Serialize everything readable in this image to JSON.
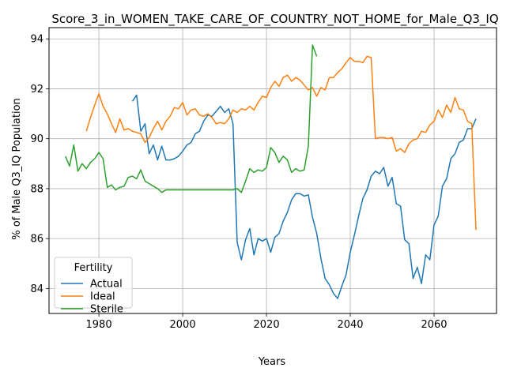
{
  "chart_data": {
    "type": "line",
    "title": "Score_3_in_WOMEN_TAKE_CARE_OF_COUNTRY_NOT_HOME_for_Male_Q3_IQ",
    "xlabel": "Years",
    "ylabel": "% of Male Q3_IQ Population",
    "xlim": [
      1968.1,
      2074.9
    ],
    "ylim": [
      83.0,
      94.45
    ],
    "xticks": [
      1980,
      2000,
      2020,
      2040,
      2060
    ],
    "yticks": [
      84,
      86,
      88,
      90,
      92,
      94
    ],
    "grid": true,
    "legend": {
      "title": "Fertility",
      "position": "lower-left"
    },
    "series": [
      {
        "name": "Actual",
        "color": "#1f77b4",
        "x": [
          1988,
          1989,
          1990,
          1991,
          1992,
          1993,
          1994,
          1995,
          1996,
          1997,
          1998,
          1999,
          2000,
          2001,
          2002,
          2003,
          2004,
          2005,
          2006,
          2007,
          2008,
          2009,
          2010,
          2011,
          2012,
          2013,
          2014,
          2015,
          2016,
          2017,
          2018,
          2019,
          2020,
          2021,
          2022,
          2023,
          2024,
          2025,
          2026,
          2027,
          2028,
          2029,
          2030,
          2031,
          2032,
          2033,
          2034,
          2035,
          2036,
          2037,
          2038,
          2039,
          2040,
          2041,
          2042,
          2043,
          2044,
          2045,
          2046,
          2047,
          2048,
          2049,
          2050,
          2051,
          2052,
          2053,
          2054,
          2055,
          2056,
          2057,
          2058,
          2059,
          2060,
          2061,
          2062,
          2063,
          2064,
          2065,
          2066,
          2067,
          2068,
          2069,
          2070
        ],
        "values": [
          91.5,
          91.75,
          90.3,
          90.6,
          89.4,
          89.75,
          89.15,
          89.7,
          89.15,
          89.15,
          89.2,
          89.3,
          89.5,
          89.75,
          89.85,
          90.2,
          90.3,
          90.7,
          90.95,
          90.9,
          91.1,
          91.3,
          91.05,
          91.2,
          90.6,
          85.85,
          85.15,
          85.95,
          86.4,
          85.35,
          86.0,
          85.9,
          86.0,
          85.45,
          86.05,
          86.2,
          86.7,
          87.05,
          87.55,
          87.8,
          87.8,
          87.7,
          87.75,
          86.85,
          86.2,
          85.2,
          84.4,
          84.15,
          83.8,
          83.6,
          84.1,
          84.55,
          85.45,
          86.15,
          86.9,
          87.6,
          87.95,
          88.5,
          88.7,
          88.6,
          88.85,
          88.1,
          88.45,
          87.4,
          87.3,
          85.95,
          85.8,
          84.4,
          84.85,
          84.2,
          85.35,
          85.15,
          86.55,
          86.9,
          88.1,
          88.4,
          89.2,
          89.4,
          89.85,
          89.95,
          90.4,
          90.4,
          90.8
        ]
      },
      {
        "name": "Ideal",
        "color": "#ff7f0e",
        "x": [
          1977,
          1978,
          1979,
          1980,
          1981,
          1982,
          1983,
          1984,
          1985,
          1986,
          1987,
          1988,
          1989,
          1990,
          1991,
          1992,
          1993,
          1994,
          1995,
          1996,
          1997,
          1998,
          1999,
          2000,
          2001,
          2002,
          2003,
          2004,
          2005,
          2006,
          2007,
          2008,
          2009,
          2010,
          2011,
          2012,
          2013,
          2014,
          2015,
          2016,
          2017,
          2018,
          2019,
          2020,
          2021,
          2022,
          2023,
          2024,
          2025,
          2026,
          2027,
          2028,
          2029,
          2030,
          2031,
          2032,
          2033,
          2034,
          2035,
          2036,
          2037,
          2038,
          2039,
          2040,
          2041,
          2042,
          2043,
          2044,
          2045,
          2046,
          2047,
          2048,
          2049,
          2050,
          2051,
          2052,
          2053,
          2054,
          2055,
          2056,
          2057,
          2058,
          2059,
          2060,
          2061,
          2062,
          2063,
          2064,
          2065,
          2066,
          2067,
          2068,
          2069,
          2070
        ],
        "values": [
          90.3,
          90.85,
          91.35,
          91.8,
          91.3,
          91.0,
          90.6,
          90.25,
          90.8,
          90.35,
          90.4,
          90.3,
          90.25,
          90.2,
          89.85,
          90.05,
          90.4,
          90.7,
          90.35,
          90.7,
          90.9,
          91.25,
          91.2,
          91.45,
          90.95,
          91.15,
          91.2,
          90.95,
          90.9,
          91.0,
          90.85,
          90.6,
          90.65,
          90.6,
          90.8,
          91.15,
          91.05,
          91.2,
          91.15,
          91.3,
          91.15,
          91.45,
          91.7,
          91.65,
          92.05,
          92.3,
          92.1,
          92.45,
          92.55,
          92.3,
          92.45,
          92.35,
          92.15,
          91.95,
          92.05,
          91.7,
          92.05,
          91.95,
          92.45,
          92.45,
          92.65,
          92.8,
          93.05,
          93.25,
          93.1,
          93.1,
          93.05,
          93.3,
          93.25,
          90.0,
          90.05,
          90.05,
          90.0,
          90.05,
          89.5,
          89.6,
          89.45,
          89.8,
          89.95,
          90.0,
          90.3,
          90.25,
          90.55,
          90.7,
          91.15,
          90.85,
          91.35,
          91.05,
          91.65,
          91.2,
          91.15,
          90.7,
          90.6,
          86.35
        ]
      },
      {
        "name": "Sterile",
        "color": "#2ca02c",
        "x": [
          1972,
          1973,
          1974,
          1975,
          1976,
          1977,
          1978,
          1979,
          1980,
          1981,
          1982,
          1983,
          1984,
          1985,
          1986,
          1987,
          1988,
          1989,
          1990,
          1991,
          1992,
          1993,
          1994,
          1995,
          1996,
          1997,
          1998,
          1999,
          2000,
          2001,
          2002,
          2003,
          2004,
          2005,
          2006,
          2007,
          2008,
          2009,
          2010,
          2011,
          2012,
          2013,
          2014,
          2015,
          2016,
          2017,
          2018,
          2019,
          2020,
          2021,
          2022,
          2023,
          2024,
          2025,
          2026,
          2027,
          2028,
          2029,
          2030,
          2031,
          2032
        ],
        "values": [
          89.3,
          88.9,
          89.75,
          88.7,
          89.0,
          88.8,
          89.05,
          89.2,
          89.45,
          89.2,
          88.05,
          88.15,
          87.95,
          88.05,
          88.1,
          88.45,
          88.5,
          88.4,
          88.75,
          88.3,
          88.2,
          88.1,
          88.0,
          87.85,
          87.95,
          87.95,
          87.95,
          87.95,
          87.95,
          87.95,
          87.95,
          87.95,
          87.95,
          87.95,
          87.95,
          87.95,
          87.95,
          87.95,
          87.95,
          87.95,
          87.95,
          88.0,
          87.85,
          88.3,
          88.8,
          88.65,
          88.75,
          88.7,
          88.85,
          89.65,
          89.45,
          89.05,
          89.3,
          89.15,
          88.65,
          88.8,
          88.7,
          88.75,
          89.7,
          93.75,
          93.3
        ]
      }
    ]
  }
}
